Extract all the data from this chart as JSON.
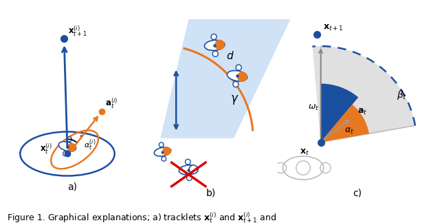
{
  "fig_width": 6.4,
  "fig_height": 3.24,
  "dpi": 100,
  "bg_color": "#ffffff",
  "blue_color": "#1a4fa0",
  "orange_color": "#e87820",
  "light_blue_fill": "#c8ddf5",
  "gray_color": "#999999",
  "red_color": "#dd0000",
  "caption": "Figure 1. Graphical explanations; a) tracklets $\\mathbf{x}_t^{(i)}$ and $\\mathbf{x}_{t+1}^{(i)}$ and"
}
